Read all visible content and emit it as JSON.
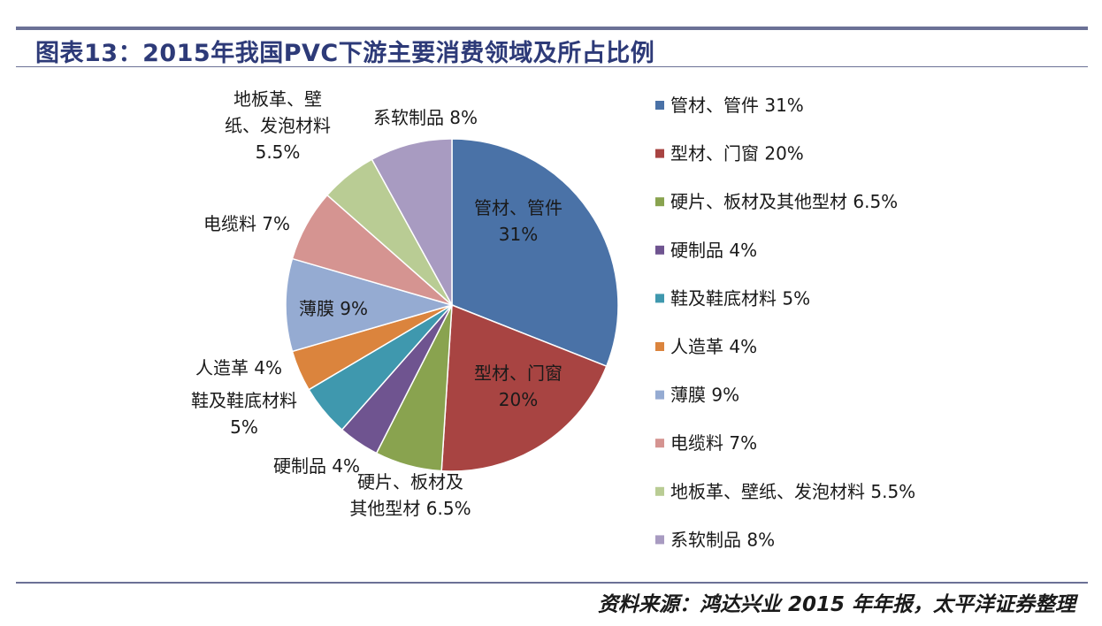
{
  "title": "图表13：2015年我国PVC下游主要消费领域及所占比例",
  "source": "资料来源：鸿达兴业 2015 年年报，太平洋证券整理",
  "chart_data": {
    "type": "pie",
    "title": "2015年我国PVC下游主要消费领域及所占比例",
    "legend_position": "right",
    "slices": [
      {
        "name": "管材、管件",
        "value": 31,
        "value_label": "31%",
        "color": "#4a72a7",
        "callout_lines": [
          "管材、管件",
          "31%"
        ],
        "legend_label": "管材、管件 31%"
      },
      {
        "name": "型材、门窗",
        "value": 20,
        "value_label": "20%",
        "color": "#a84442",
        "callout_lines": [
          "型材、门窗",
          "20%"
        ],
        "legend_label": "型材、门窗 20%"
      },
      {
        "name": "硬片、板材及其他型材",
        "value": 6.5,
        "value_label": "6.5%",
        "color": "#89a34f",
        "callout_lines": [
          "硬片、板材及",
          "其他型材 6.5%"
        ],
        "legend_label": "硬片、板材及其他型材 6.5%"
      },
      {
        "name": "硬制品",
        "value": 4,
        "value_label": "4%",
        "color": "#6f5490",
        "callout_lines": [
          "硬制品 4%"
        ],
        "legend_label": "硬制品 4%"
      },
      {
        "name": "鞋及鞋底材料",
        "value": 5,
        "value_label": "5%",
        "color": "#3f98ae",
        "callout_lines": [
          "鞋及鞋底材料",
          "5%"
        ],
        "legend_label": "鞋及鞋底材料 5%"
      },
      {
        "name": "人造革",
        "value": 4,
        "value_label": "4%",
        "color": "#db843d",
        "callout_lines": [
          "人造革 4%"
        ],
        "legend_label": "人造革 4%"
      },
      {
        "name": "薄膜",
        "value": 9,
        "value_label": "9%",
        "color": "#95abd2",
        "callout_lines": [
          "薄膜 9%"
        ],
        "legend_label": "薄膜 9%"
      },
      {
        "name": "电缆料",
        "value": 7,
        "value_label": "7%",
        "color": "#d59491",
        "callout_lines": [
          "电缆料 7%"
        ],
        "legend_label": "电缆料 7%"
      },
      {
        "name": "地板革、壁纸、发泡材料",
        "value": 5.5,
        "value_label": "5.5%",
        "color": "#b9cc94",
        "callout_lines": [
          "地板革、壁",
          "纸、发泡材料",
          "5.5%"
        ],
        "legend_label": "地板革、壁纸、发泡材料 5.5%"
      },
      {
        "name": "系软制品",
        "value": 8,
        "value_label": "8%",
        "color": "#a89bc1",
        "callout_lines": [
          "系软制品 8%"
        ],
        "legend_label": "系软制品 8%"
      }
    ]
  }
}
